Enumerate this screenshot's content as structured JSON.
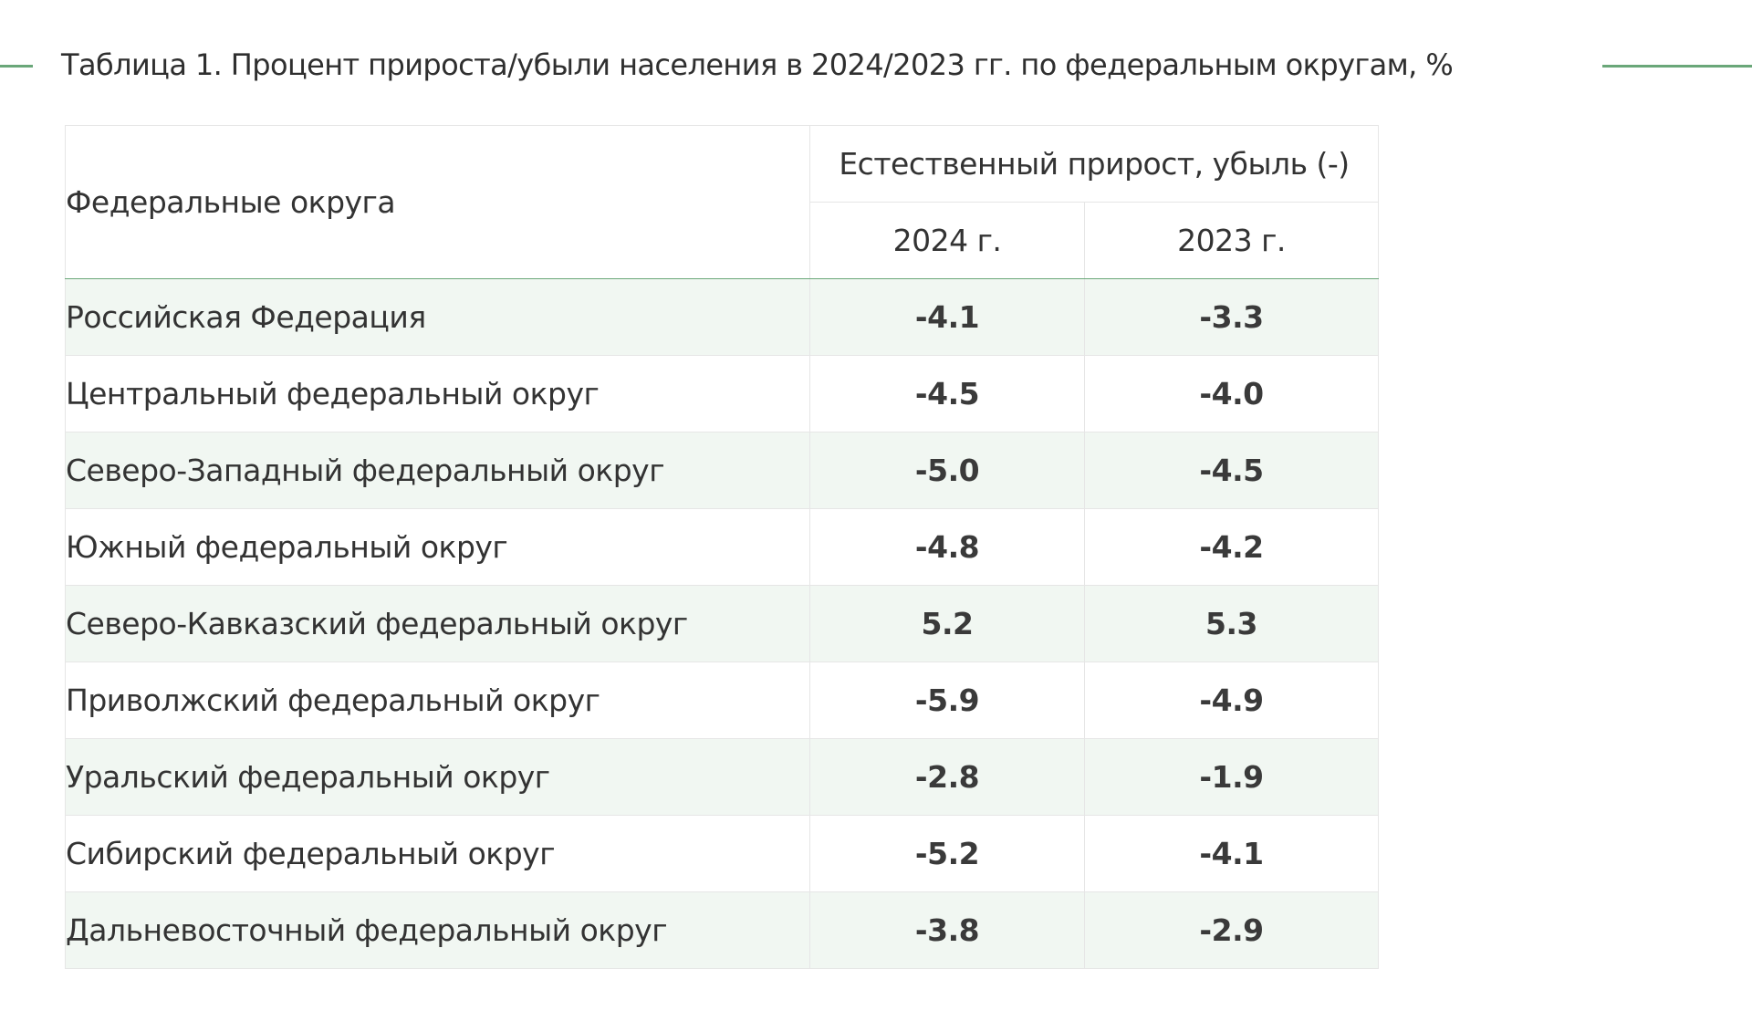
{
  "title": "Таблица 1.  Процент прироста/убыли населения в 2024/2023 гг. по федеральным округам, %",
  "colors": {
    "accent": "#6aa779",
    "row_stripe": "#f1f7f2",
    "border": "#e6e6e6",
    "text": "#2f2f2f"
  },
  "table": {
    "region_header": "Федеральные округа",
    "group_header": "Естественный прирост, убыль (-)",
    "years": [
      "2024 г.",
      "2023 г."
    ],
    "rows": [
      {
        "region": "Российская Федерация",
        "y2024": "-4.1",
        "y2023": "-3.3"
      },
      {
        "region": "Центральный федеральный округ",
        "y2024": "-4.5",
        "y2023": "-4.0"
      },
      {
        "region": "Северо-Западный федеральный округ",
        "y2024": "-5.0",
        "y2023": "-4.5"
      },
      {
        "region": "Южный федеральный округ",
        "y2024": "-4.8",
        "y2023": "-4.2"
      },
      {
        "region": "Северо-Кавказский федеральный округ",
        "y2024": "5.2",
        "y2023": "5.3"
      },
      {
        "region": "Приволжский федеральный округ",
        "y2024": "-5.9",
        "y2023": "-4.9"
      },
      {
        "region": "Уральский федеральный округ",
        "y2024": "-2.8",
        "y2023": "-1.9"
      },
      {
        "region": "Сибирский федеральный округ",
        "y2024": "-5.2",
        "y2023": "-4.1"
      },
      {
        "region": "Дальневосточный федеральный округ",
        "y2024": "-3.8",
        "y2023": "-2.9"
      }
    ]
  }
}
